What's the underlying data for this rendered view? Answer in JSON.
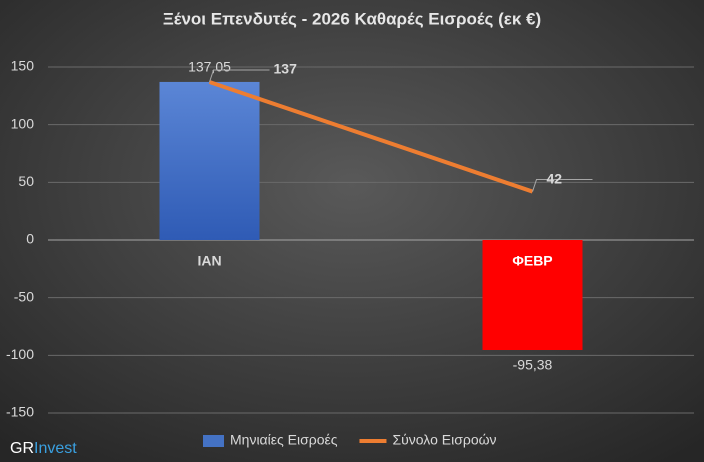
{
  "chart_data": {
    "type": "bar_line",
    "title": "Ξένοι Επενδυτές - 2026 Καθαρές Εισροές (εκ €)",
    "categories": [
      "ΙΑΝ",
      "ΦΕΒΡ"
    ],
    "series": [
      {
        "name": "Μηνιαίες Εισροές",
        "type": "bar",
        "color": "#4472c4",
        "colors": [
          "#4472c4",
          "#ff0000"
        ],
        "values": [
          137.05,
          -95.38
        ],
        "value_labels": [
          "137,05",
          "-95,38"
        ]
      },
      {
        "name": "Σύνολο Εισροών",
        "type": "line",
        "color": "#ed7d31",
        "values": [
          137,
          42
        ]
      }
    ],
    "ylim": [
      -150,
      150
    ],
    "yticks": [
      -150,
      -100,
      -50,
      0,
      50,
      100,
      150
    ],
    "grid": true,
    "legend": "bottom",
    "watermark": [
      "GR",
      "Invest"
    ]
  }
}
